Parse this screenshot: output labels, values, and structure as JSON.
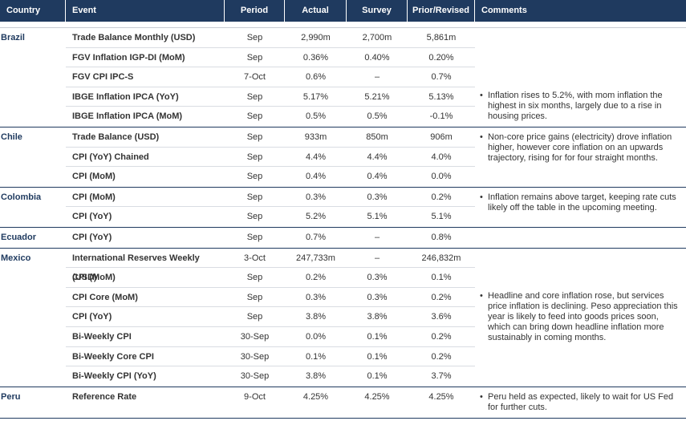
{
  "header": [
    "Country",
    "Event",
    "Period",
    "Actual",
    "Survey",
    "Prior/Revised",
    "Comments"
  ],
  "groups": [
    {
      "country": "Brazil",
      "rows": [
        [
          "Trade Balance Monthly (USD)",
          "Sep",
          "2,990m",
          "2,700m",
          "5,861m"
        ],
        [
          "FGV Inflation IGP-DI (MoM)",
          "Sep",
          "0.36%",
          "0.40%",
          "0.20%"
        ],
        [
          "FGV CPI IPC-S",
          "7-Oct",
          "0.6%",
          "–",
          "0.7%"
        ],
        [
          "IBGE Inflation IPCA (YoY)",
          "Sep",
          "5.17%",
          "5.21%",
          "5.13%"
        ],
        [
          "IBGE Inflation IPCA (MoM)",
          "Sep",
          "0.5%",
          "0.5%",
          "-0.1%"
        ]
      ],
      "comment": "Inflation rises to 5.2%, with mom inflation the highest in six months, largely due to a rise in housing prices."
    },
    {
      "country": "Chile",
      "rows": [
        [
          "Trade Balance (USD)",
          "Sep",
          "933m",
          "850m",
          "906m"
        ],
        [
          "CPI (YoY) Chained",
          "Sep",
          "4.4%",
          "4.4%",
          "4.0%"
        ],
        [
          "CPI (MoM)",
          "Sep",
          "0.4%",
          "0.4%",
          "0.0%"
        ]
      ],
      "comment": "Non-core price gains (electricity) drove inflation higher, however core inflation on an upwards trajectory, rising for for four straight months."
    },
    {
      "country": "Colombia",
      "rows": [
        [
          "CPI (MoM)",
          "Sep",
          "0.3%",
          "0.3%",
          "0.2%"
        ],
        [
          "CPI (YoY)",
          "Sep",
          "5.2%",
          "5.1%",
          "5.1%"
        ]
      ],
      "comment": "Inflation remains above target, keeping rate cuts likely off the table in the upcoming meeting."
    },
    {
      "country": "Ecuador",
      "rows": [
        [
          "CPI (YoY)",
          "Sep",
          "0.7%",
          "–",
          "0.8%"
        ]
      ],
      "comment": null
    },
    {
      "country": "Mexico",
      "rows": [
        [
          "International Reserves Weekly (USD)",
          "3-Oct",
          "247,733m",
          "–",
          "246,832m"
        ],
        [
          "CPI (MoM)",
          "Sep",
          "0.2%",
          "0.3%",
          "0.1%"
        ],
        [
          "CPI Core (MoM)",
          "Sep",
          "0.3%",
          "0.3%",
          "0.2%"
        ],
        [
          "CPI (YoY)",
          "Sep",
          "3.8%",
          "3.8%",
          "3.6%"
        ],
        [
          "Bi-Weekly CPI",
          "30-Sep",
          "0.0%",
          "0.1%",
          "0.2%"
        ],
        [
          "Bi-Weekly Core CPI",
          "30-Sep",
          "0.1%",
          "0.1%",
          "0.2%"
        ],
        [
          "Bi-Weekly CPI (YoY)",
          "30-Sep",
          "3.8%",
          "0.1%",
          "3.7%"
        ]
      ],
      "comment": "Headline and core inflation rose, but services price inflation is declining. Peso appreciation this year is likely to feed into goods prices soon, which can bring down headline inflation more sustainably in coming months."
    },
    {
      "country": "Peru",
      "rows": [
        [
          "Reference Rate",
          "9-Oct",
          "4.25%",
          "4.25%",
          "4.25%"
        ]
      ],
      "comment": "Peru held as expected, likely to wait for US Fed for further cuts."
    }
  ]
}
